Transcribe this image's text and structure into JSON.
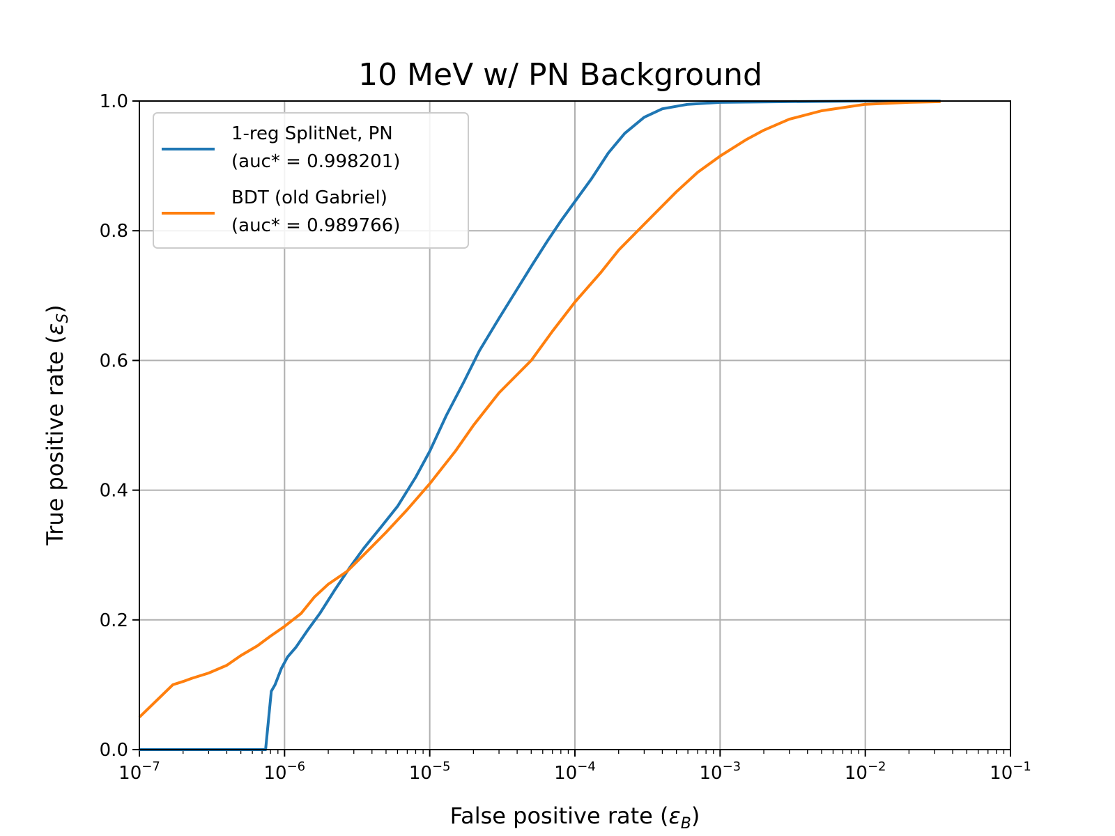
{
  "chart_data": {
    "type": "line",
    "title": "10 MeV w/ PN Background",
    "xlabel_main": "False positive rate (",
    "xlabel_symbol": "ε",
    "xlabel_sub": "B",
    "xlabel_close": ")",
    "ylabel_main": "True positive rate (",
    "ylabel_symbol": "ε",
    "ylabel_sub": "S",
    "ylabel_close": ")",
    "x_scale": "log",
    "xlim": [
      1e-07,
      0.1
    ],
    "ylim": [
      0.0,
      1.0
    ],
    "grid": true,
    "legend_position": "top-left",
    "x_ticks": [
      {
        "base": "10",
        "exp": "−7"
      },
      {
        "base": "10",
        "exp": "−6"
      },
      {
        "base": "10",
        "exp": "−5"
      },
      {
        "base": "10",
        "exp": "−4"
      },
      {
        "base": "10",
        "exp": "−3"
      },
      {
        "base": "10",
        "exp": "−2"
      },
      {
        "base": "10",
        "exp": "−1"
      }
    ],
    "y_ticks": [
      "0.0",
      "0.2",
      "0.4",
      "0.6",
      "0.8",
      "1.0"
    ],
    "series": [
      {
        "name_line1": "1-reg SplitNet, PN",
        "name_line2": "(auc* = 0.998201)",
        "color": "#1f77b4",
        "points": [
          [
            1e-07,
            0.0
          ],
          [
            7.4e-07,
            0.0
          ],
          [
            8.1e-07,
            0.09
          ],
          [
            8.6e-07,
            0.1
          ],
          [
            9.5e-07,
            0.125
          ],
          [
            1.05e-06,
            0.143
          ],
          [
            1.2e-06,
            0.158
          ],
          [
            1.45e-06,
            0.185
          ],
          [
            1.75e-06,
            0.21
          ],
          [
            2.2e-06,
            0.245
          ],
          [
            2.8e-06,
            0.28
          ],
          [
            3.5e-06,
            0.31
          ],
          [
            4.5e-06,
            0.34
          ],
          [
            6e-06,
            0.375
          ],
          [
            8e-06,
            0.42
          ],
          [
            1e-05,
            0.46
          ],
          [
            1.3e-05,
            0.515
          ],
          [
            1.7e-05,
            0.565
          ],
          [
            2.2e-05,
            0.615
          ],
          [
            3e-05,
            0.665
          ],
          [
            4e-05,
            0.71
          ],
          [
            5e-05,
            0.745
          ],
          [
            6.5e-05,
            0.785
          ],
          [
            8e-05,
            0.815
          ],
          [
            0.0001,
            0.845
          ],
          [
            0.00013,
            0.88
          ],
          [
            0.00017,
            0.92
          ],
          [
            0.00022,
            0.95
          ],
          [
            0.0003,
            0.975
          ],
          [
            0.0004,
            0.988
          ],
          [
            0.0006,
            0.995
          ],
          [
            0.001,
            0.998
          ],
          [
            0.003,
            0.999
          ],
          [
            0.01,
            1.0
          ],
          [
            0.033,
            1.0
          ]
        ]
      },
      {
        "name_line1": "BDT (old Gabriel)",
        "name_line2": "(auc* = 0.989766)",
        "color": "#ff7f0e",
        "points": [
          [
            1e-07,
            0.05
          ],
          [
            1.7e-07,
            0.1
          ],
          [
            2e-07,
            0.105
          ],
          [
            2.3e-07,
            0.11
          ],
          [
            3e-07,
            0.118
          ],
          [
            4e-07,
            0.13
          ],
          [
            5e-07,
            0.145
          ],
          [
            6.5e-07,
            0.16
          ],
          [
            8e-07,
            0.175
          ],
          [
            1e-06,
            0.19
          ],
          [
            1.3e-06,
            0.21
          ],
          [
            1.6e-06,
            0.235
          ],
          [
            2e-06,
            0.255
          ],
          [
            2.7e-06,
            0.275
          ],
          [
            3.5e-06,
            0.3
          ],
          [
            5e-06,
            0.335
          ],
          [
            7e-06,
            0.37
          ],
          [
            1e-05,
            0.41
          ],
          [
            1.5e-05,
            0.46
          ],
          [
            2e-05,
            0.5
          ],
          [
            3e-05,
            0.55
          ],
          [
            5e-05,
            0.6
          ],
          [
            7e-05,
            0.645
          ],
          [
            0.0001,
            0.69
          ],
          [
            0.00015,
            0.735
          ],
          [
            0.0002,
            0.77
          ],
          [
            0.0003,
            0.81
          ],
          [
            0.0005,
            0.86
          ],
          [
            0.0007,
            0.89
          ],
          [
            0.001,
            0.915
          ],
          [
            0.0015,
            0.94
          ],
          [
            0.002,
            0.955
          ],
          [
            0.003,
            0.972
          ],
          [
            0.005,
            0.985
          ],
          [
            0.01,
            0.995
          ],
          [
            0.02,
            0.998
          ],
          [
            0.033,
            0.999
          ]
        ]
      }
    ]
  }
}
